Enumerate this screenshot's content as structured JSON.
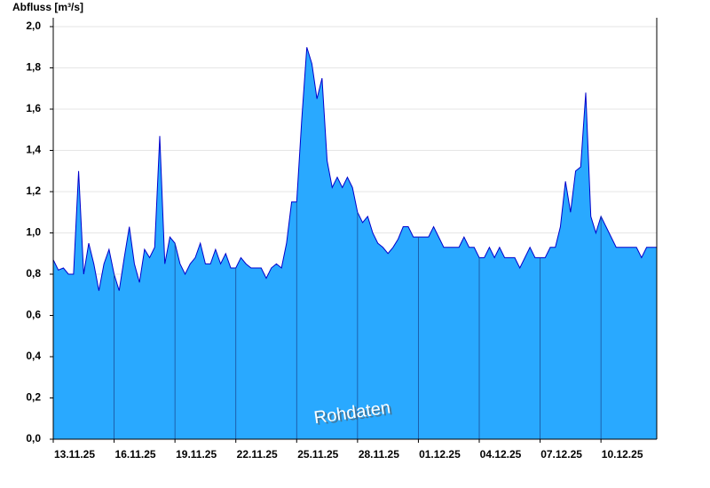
{
  "chart_data": {
    "type": "area",
    "y_label": "Abfluss [m³/s]",
    "annotation": "Rohdaten",
    "color": "#29a9ff",
    "line_color": "#0000cc",
    "grid": true,
    "categories": [
      "13.11.25",
      null,
      null,
      null,
      null,
      null,
      null,
      null,
      null,
      null,
      null,
      null,
      "16.11.25",
      null,
      null,
      null,
      null,
      null,
      null,
      null,
      null,
      null,
      null,
      null,
      "19.11.25",
      null,
      null,
      null,
      null,
      null,
      null,
      null,
      null,
      null,
      null,
      null,
      "22.11.25",
      null,
      null,
      null,
      null,
      null,
      null,
      null,
      null,
      null,
      null,
      null,
      "25.11.25",
      null,
      null,
      null,
      null,
      null,
      null,
      null,
      null,
      null,
      null,
      null,
      "28.11.25",
      null,
      null,
      null,
      null,
      null,
      null,
      null,
      null,
      null,
      null,
      null,
      "01.12.25",
      null,
      null,
      null,
      null,
      null,
      null,
      null,
      null,
      null,
      null,
      null,
      "04.12.25",
      null,
      null,
      null,
      null,
      null,
      null,
      null,
      null,
      null,
      null,
      null,
      "07.12.25",
      null,
      null,
      null,
      null,
      null,
      null,
      null,
      null,
      null,
      null,
      null,
      "10.12.25",
      null,
      null,
      null,
      null,
      null,
      null,
      null,
      null,
      null,
      null,
      null
    ],
    "values": [
      0.87,
      0.82,
      0.83,
      0.8,
      0.8,
      1.3,
      0.8,
      0.95,
      0.85,
      0.72,
      0.85,
      0.92,
      0.8,
      0.72,
      0.88,
      1.03,
      0.85,
      0.76,
      0.92,
      0.88,
      0.93,
      1.47,
      0.85,
      0.98,
      0.95,
      0.85,
      0.8,
      0.85,
      0.88,
      0.95,
      0.85,
      0.85,
      0.92,
      0.85,
      0.9,
      0.83,
      0.83,
      0.88,
      0.85,
      0.83,
      0.83,
      0.83,
      0.78,
      0.83,
      0.85,
      0.83,
      0.95,
      1.15,
      1.15,
      1.55,
      1.9,
      1.82,
      1.65,
      1.75,
      1.35,
      1.22,
      1.27,
      1.22,
      1.27,
      1.22,
      1.1,
      1.05,
      1.08,
      1.0,
      0.95,
      0.93,
      0.9,
      0.93,
      0.97,
      1.03,
      1.03,
      0.98,
      0.98,
      0.98,
      0.98,
      1.03,
      0.98,
      0.93,
      0.93,
      0.93,
      0.93,
      0.98,
      0.93,
      0.93,
      0.88,
      0.88,
      0.93,
      0.88,
      0.93,
      0.88,
      0.88,
      0.88,
      0.83,
      0.88,
      0.93,
      0.88,
      0.88,
      0.88,
      0.93,
      0.93,
      1.03,
      1.25,
      1.1,
      1.3,
      1.32,
      1.68,
      1.08,
      1.0,
      1.08,
      1.03,
      0.98,
      0.93,
      0.93,
      0.93,
      0.93,
      0.93,
      0.88,
      0.93,
      0.93,
      0.93
    ],
    "ylim": [
      0,
      2
    ],
    "yticks": [
      {
        "value": 0,
        "label": "0,0"
      },
      {
        "value": 0.2,
        "label": "0,2"
      },
      {
        "value": 0.4,
        "label": "0,4"
      },
      {
        "value": 0.6,
        "label": "0,6"
      },
      {
        "value": 0.8,
        "label": "0,8"
      },
      {
        "value": 1.0,
        "label": "1,0"
      },
      {
        "value": 1.2,
        "label": "1,2"
      },
      {
        "value": 1.4,
        "label": "1,4"
      },
      {
        "value": 1.6,
        "label": "1,6"
      },
      {
        "value": 1.8,
        "label": "1,8"
      },
      {
        "value": 2.0,
        "label": "2,0"
      }
    ]
  }
}
